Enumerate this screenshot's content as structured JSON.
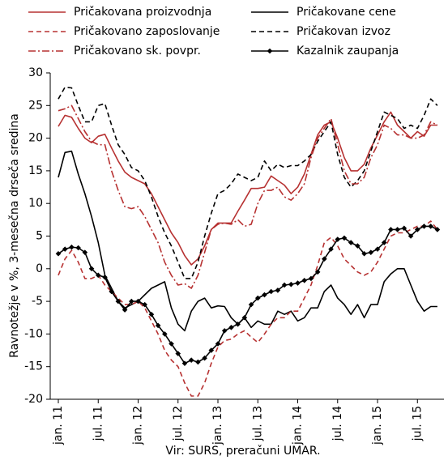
{
  "chart_data": {
    "type": "line",
    "y_label": "Ravnotežje v %, 3-mesečna drseča sredina",
    "source": "Vir:  SURS, preračuni UMAR.",
    "categories": [
      "jan. 11",
      null,
      null,
      null,
      null,
      null,
      "jul. 11",
      null,
      null,
      null,
      null,
      null,
      "jan. 12",
      null,
      null,
      null,
      null,
      null,
      "jul. 12",
      null,
      null,
      null,
      null,
      null,
      "jan. 13",
      null,
      null,
      null,
      null,
      null,
      "jul. 13",
      null,
      null,
      null,
      null,
      null,
      "jan. 14",
      null,
      null,
      null,
      null,
      null,
      "jul. 14",
      null,
      null,
      null,
      null,
      null,
      "jan. 15",
      null,
      null,
      null,
      null,
      null,
      "jul. 15",
      null,
      null,
      null
    ],
    "ylim": [
      -20,
      30
    ],
    "yticks": [
      -20,
      -15,
      -10,
      -5,
      0,
      5,
      10,
      15,
      20,
      25,
      30
    ],
    "grid": false,
    "series": [
      {
        "name": "Pričakovana proizvodnja",
        "color": "#b73232",
        "dash": "solid",
        "values": [
          21.8,
          23.5,
          23.2,
          21.5,
          20,
          19.3,
          20.3,
          20.6,
          18.5,
          16.5,
          14.8,
          14,
          13.5,
          13,
          11.5,
          9.5,
          7.5,
          5.5,
          4,
          2,
          0.6,
          1.5,
          3.5,
          6,
          7,
          7,
          7,
          8.8,
          10.5,
          12.3,
          12.3,
          12.5,
          14.2,
          13.5,
          12.8,
          11.5,
          12.5,
          14.5,
          17.5,
          20.5,
          22,
          22.5,
          20,
          17,
          15,
          15,
          16,
          18.5,
          20.5,
          22.5,
          24,
          22,
          21,
          20,
          21,
          20.3,
          22,
          22
        ]
      },
      {
        "name": "Pričakovane cene",
        "color": "#000000",
        "dash": "solid",
        "values": [
          14,
          17.8,
          18,
          14.5,
          11.5,
          8,
          4,
          -1,
          -3,
          -5,
          -6,
          -5.5,
          -5,
          -4,
          -3,
          -2.5,
          -2,
          -6,
          -8.5,
          -9.5,
          -6.5,
          -5,
          -4.5,
          -6,
          -5.7,
          -5.8,
          -7.5,
          -8.5,
          -7.5,
          -9,
          -8,
          -8.5,
          -8.5,
          -6.5,
          -7,
          -6.5,
          -8,
          -7.5,
          -6,
          -6,
          -3.5,
          -2.5,
          -4.5,
          -5.5,
          -7,
          -5.5,
          -7.5,
          -5.5,
          -5.5,
          -2,
          -0.8,
          0,
          0,
          -2.5,
          -5,
          -6.5,
          -5.8,
          -5.8
        ]
      },
      {
        "name": "Pričakovano zaposlovanje",
        "color": "#b73232",
        "dash": "dashed",
        "values": [
          -1,
          1.5,
          2.8,
          1,
          -1.5,
          -1.5,
          -1,
          -2.5,
          -3.5,
          -4.5,
          -5.5,
          -5.5,
          -5,
          -6,
          -8,
          -10,
          -12.5,
          -14,
          -15,
          -17.5,
          -19.5,
          -19.5,
          -17.5,
          -14.5,
          -12,
          -11,
          -10.8,
          -10,
          -9.5,
          -10.5,
          -11.3,
          -10,
          -8.5,
          -7.5,
          -7.5,
          -6.5,
          -6.5,
          -4.5,
          -2.5,
          0.5,
          4,
          4.8,
          3.5,
          1.5,
          0.5,
          -0.5,
          -1,
          -0.5,
          1,
          3,
          5,
          5.5,
          5.5,
          6,
          6.5,
          6.5,
          7.3,
          6
        ]
      },
      {
        "name": "Pričakovan izvoz",
        "color": "#000000",
        "dash": "dashed",
        "values": [
          26,
          27.8,
          27.7,
          25,
          22.5,
          22.5,
          25,
          25.3,
          22,
          19,
          17.5,
          15.5,
          15,
          13.5,
          11,
          8,
          5.5,
          3.5,
          1,
          -1.5,
          -1.5,
          1,
          5,
          8.5,
          11.5,
          12,
          13,
          14.5,
          14,
          13.5,
          14,
          16.5,
          15,
          16,
          15.5,
          15.8,
          15.8,
          16.5,
          17.5,
          19.5,
          21,
          22.5,
          17.5,
          14,
          12.5,
          13.5,
          15,
          18,
          21,
          24,
          23.5,
          23,
          21.5,
          22,
          21.5,
          23.5,
          26,
          25
        ]
      },
      {
        "name": "Pričakovano sk. povpr.",
        "color": "#b73232",
        "dash": "dashdot",
        "values": [
          24.2,
          24.5,
          25,
          23,
          21,
          19.5,
          19,
          19,
          15,
          12,
          9.5,
          9.2,
          9.5,
          8,
          6,
          4,
          1,
          -1,
          -2.5,
          -2.3,
          -3,
          -1,
          2.5,
          6,
          6.8,
          7,
          6.8,
          7.5,
          6.5,
          6.8,
          10,
          12,
          12,
          12.5,
          11,
          10.5,
          11.5,
          13,
          17,
          20,
          21.5,
          23,
          19,
          15,
          13,
          13,
          14,
          17,
          19,
          22,
          21.5,
          20.5,
          20.5,
          20,
          20,
          20.5,
          22.5,
          22
        ]
      },
      {
        "name": "Kazalnik zaupanja",
        "color": "#000000",
        "dash": "solid",
        "marker": "diamond",
        "values": [
          2.3,
          3,
          3.3,
          3.2,
          2.5,
          0,
          -1,
          -1.3,
          -3.5,
          -5,
          -6.3,
          -5,
          -5,
          -5.5,
          -7,
          -8.7,
          -10,
          -11.5,
          -13,
          -14.5,
          -14,
          -14.3,
          -13.7,
          -12.5,
          -11.5,
          -9.5,
          -9,
          -8.5,
          -7.5,
          -5.5,
          -4.5,
          -4,
          -3.5,
          -3.3,
          -2.5,
          -2.4,
          -2.2,
          -1.8,
          -1.5,
          -0.5,
          1.5,
          3,
          4.5,
          4.7,
          4,
          3.5,
          2.3,
          2.5,
          3,
          4,
          6,
          6,
          6.2,
          5,
          6,
          6.5,
          6.5,
          6
        ]
      }
    ]
  }
}
